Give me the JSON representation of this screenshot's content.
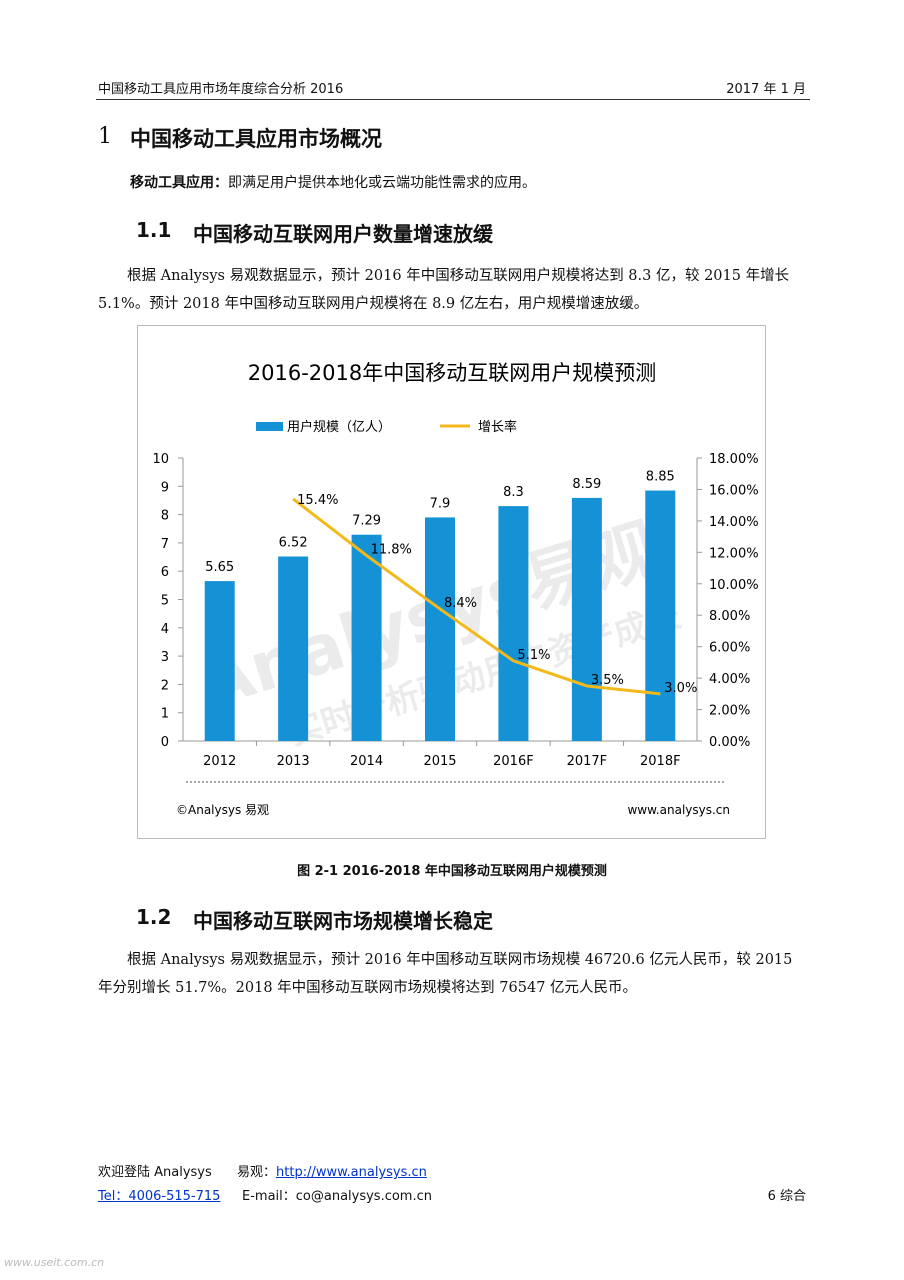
{
  "header": {
    "left": "中国移动工具应用市场年度综合分析 2016",
    "right": "2017 年 1 月"
  },
  "heading1": {
    "number": "1",
    "title": "中国移动工具应用市场概况"
  },
  "definition": {
    "term": "移动工具应用：",
    "text": "即满足用户提供本地化或云端功能性需求的应用。"
  },
  "section1": {
    "number": "1.1",
    "title": "中国移动互联网用户数量增速放缓",
    "paragraph": "根据 Analysys 易观数据显示，预计 2016 年中国移动互联网用户规模将达到 8.3 亿，较 2015 年增长 5.1%。预计 2018 年中国移动互联网用户规模将在 8.9 亿左右，用户规模增速放缓。"
  },
  "chart_data": {
    "type": "bar",
    "title": "2016-2018年中国移动互联网用户规模预测",
    "categories": [
      "2012",
      "2013",
      "2014",
      "2015",
      "2016F",
      "2017F",
      "2018F"
    ],
    "series": [
      {
        "name": "用户规模（亿人）",
        "color": "#1592d6",
        "values": [
          5.65,
          6.52,
          7.29,
          7.9,
          8.3,
          8.59,
          8.85
        ]
      },
      {
        "name": "增长率",
        "type": "line",
        "axis": "y2",
        "color": "#f3b81a",
        "values": [
          null,
          15.4,
          11.8,
          8.4,
          5.1,
          3.5,
          3.0
        ],
        "value_labels": [
          null,
          "15.4%",
          "11.8%",
          "8.4%",
          "5.1%",
          "3.5%",
          "3.0%"
        ]
      }
    ],
    "ylim": [
      0,
      10
    ],
    "yticks": [
      0,
      1,
      2,
      3,
      4,
      5,
      6,
      7,
      8,
      9,
      10
    ],
    "y2lim": [
      0,
      18
    ],
    "y2ticks": [
      {
        "value": 0,
        "label": "0.00%"
      },
      {
        "value": 2,
        "label": "2.00%"
      },
      {
        "value": 4,
        "label": "4.00%"
      },
      {
        "value": 6,
        "label": "6.00%"
      },
      {
        "value": 8,
        "label": "8.00%"
      },
      {
        "value": 10,
        "label": "10.00%"
      },
      {
        "value": 12,
        "label": "12.00%"
      },
      {
        "value": 14,
        "label": "14.00%"
      },
      {
        "value": 16,
        "label": "16.00%"
      },
      {
        "value": 18,
        "label": "18.00%"
      }
    ],
    "legend": "top",
    "source": "©Analysys 易观",
    "website": "www.analysys.cn",
    "watermark": "Analysys易观",
    "watermark_slogan": "实时分析驱动用户资产成长"
  },
  "caption": "图 2-1 2016-2018 年中国移动互联网用户规模预测",
  "section2": {
    "number": "1.2",
    "title": "中国移动互联网市场规模增长稳定",
    "paragraph": "根据 Analysys 易观数据显示，预计 2016 年中国移动互联网市场规模 46720.6 亿元人民币，较 2015 年分别增长 51.7%。2018 年中国移动互联网市场规模将达到 76547 亿元人民币。"
  },
  "footer": {
    "welcome": "欢迎登陆 Analysys",
    "brand": "易观：",
    "url": "http://www.analysys.cn",
    "tel": "Tel：4006-515-715",
    "email": "E-mail：co@analysys.com.cn",
    "page": "6 综合"
  },
  "site_watermark": "www.useit.com.cn"
}
